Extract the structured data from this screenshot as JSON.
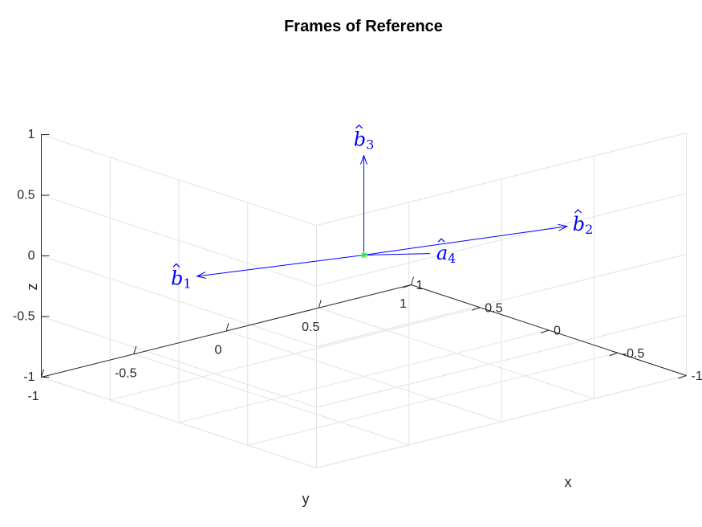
{
  "chart_data": {
    "type": "3d-quiver",
    "title": "Frames of Reference",
    "xlabel": "x",
    "ylabel": "y",
    "zlabel": "z",
    "xlim": [
      -1,
      1
    ],
    "ylim": [
      -1,
      1
    ],
    "zlim": [
      -1,
      1
    ],
    "xticks": [
      "-1",
      "-0.5",
      "0",
      "0.5",
      "1"
    ],
    "yticks": [
      "-1",
      "-0.5",
      "0",
      "0.5",
      "1"
    ],
    "zticks": [
      "-1",
      "-0.5",
      "0",
      "0.5",
      "1"
    ],
    "grid": true,
    "origin": [
      0,
      0,
      0
    ],
    "vector_color": "#0000ff",
    "origin_marker_color": "#00ff00",
    "vectors": [
      {
        "id": "b1",
        "hat": "b",
        "sub": "1",
        "end": [
          0.5,
          -0.53,
          -0.16
        ],
        "arrow": true
      },
      {
        "id": "b2",
        "hat": "b",
        "sub": "2",
        "end": [
          -0.2,
          0.95,
          -0.05
        ],
        "arrow": true
      },
      {
        "id": "b3",
        "hat": "b",
        "sub": "3",
        "end": [
          0,
          0,
          0.82
        ],
        "arrow": true
      },
      {
        "id": "a4",
        "hat": "a",
        "sub": "4",
        "end": [
          -0.28,
          0.15,
          0.06
        ],
        "arrow": false
      }
    ]
  }
}
